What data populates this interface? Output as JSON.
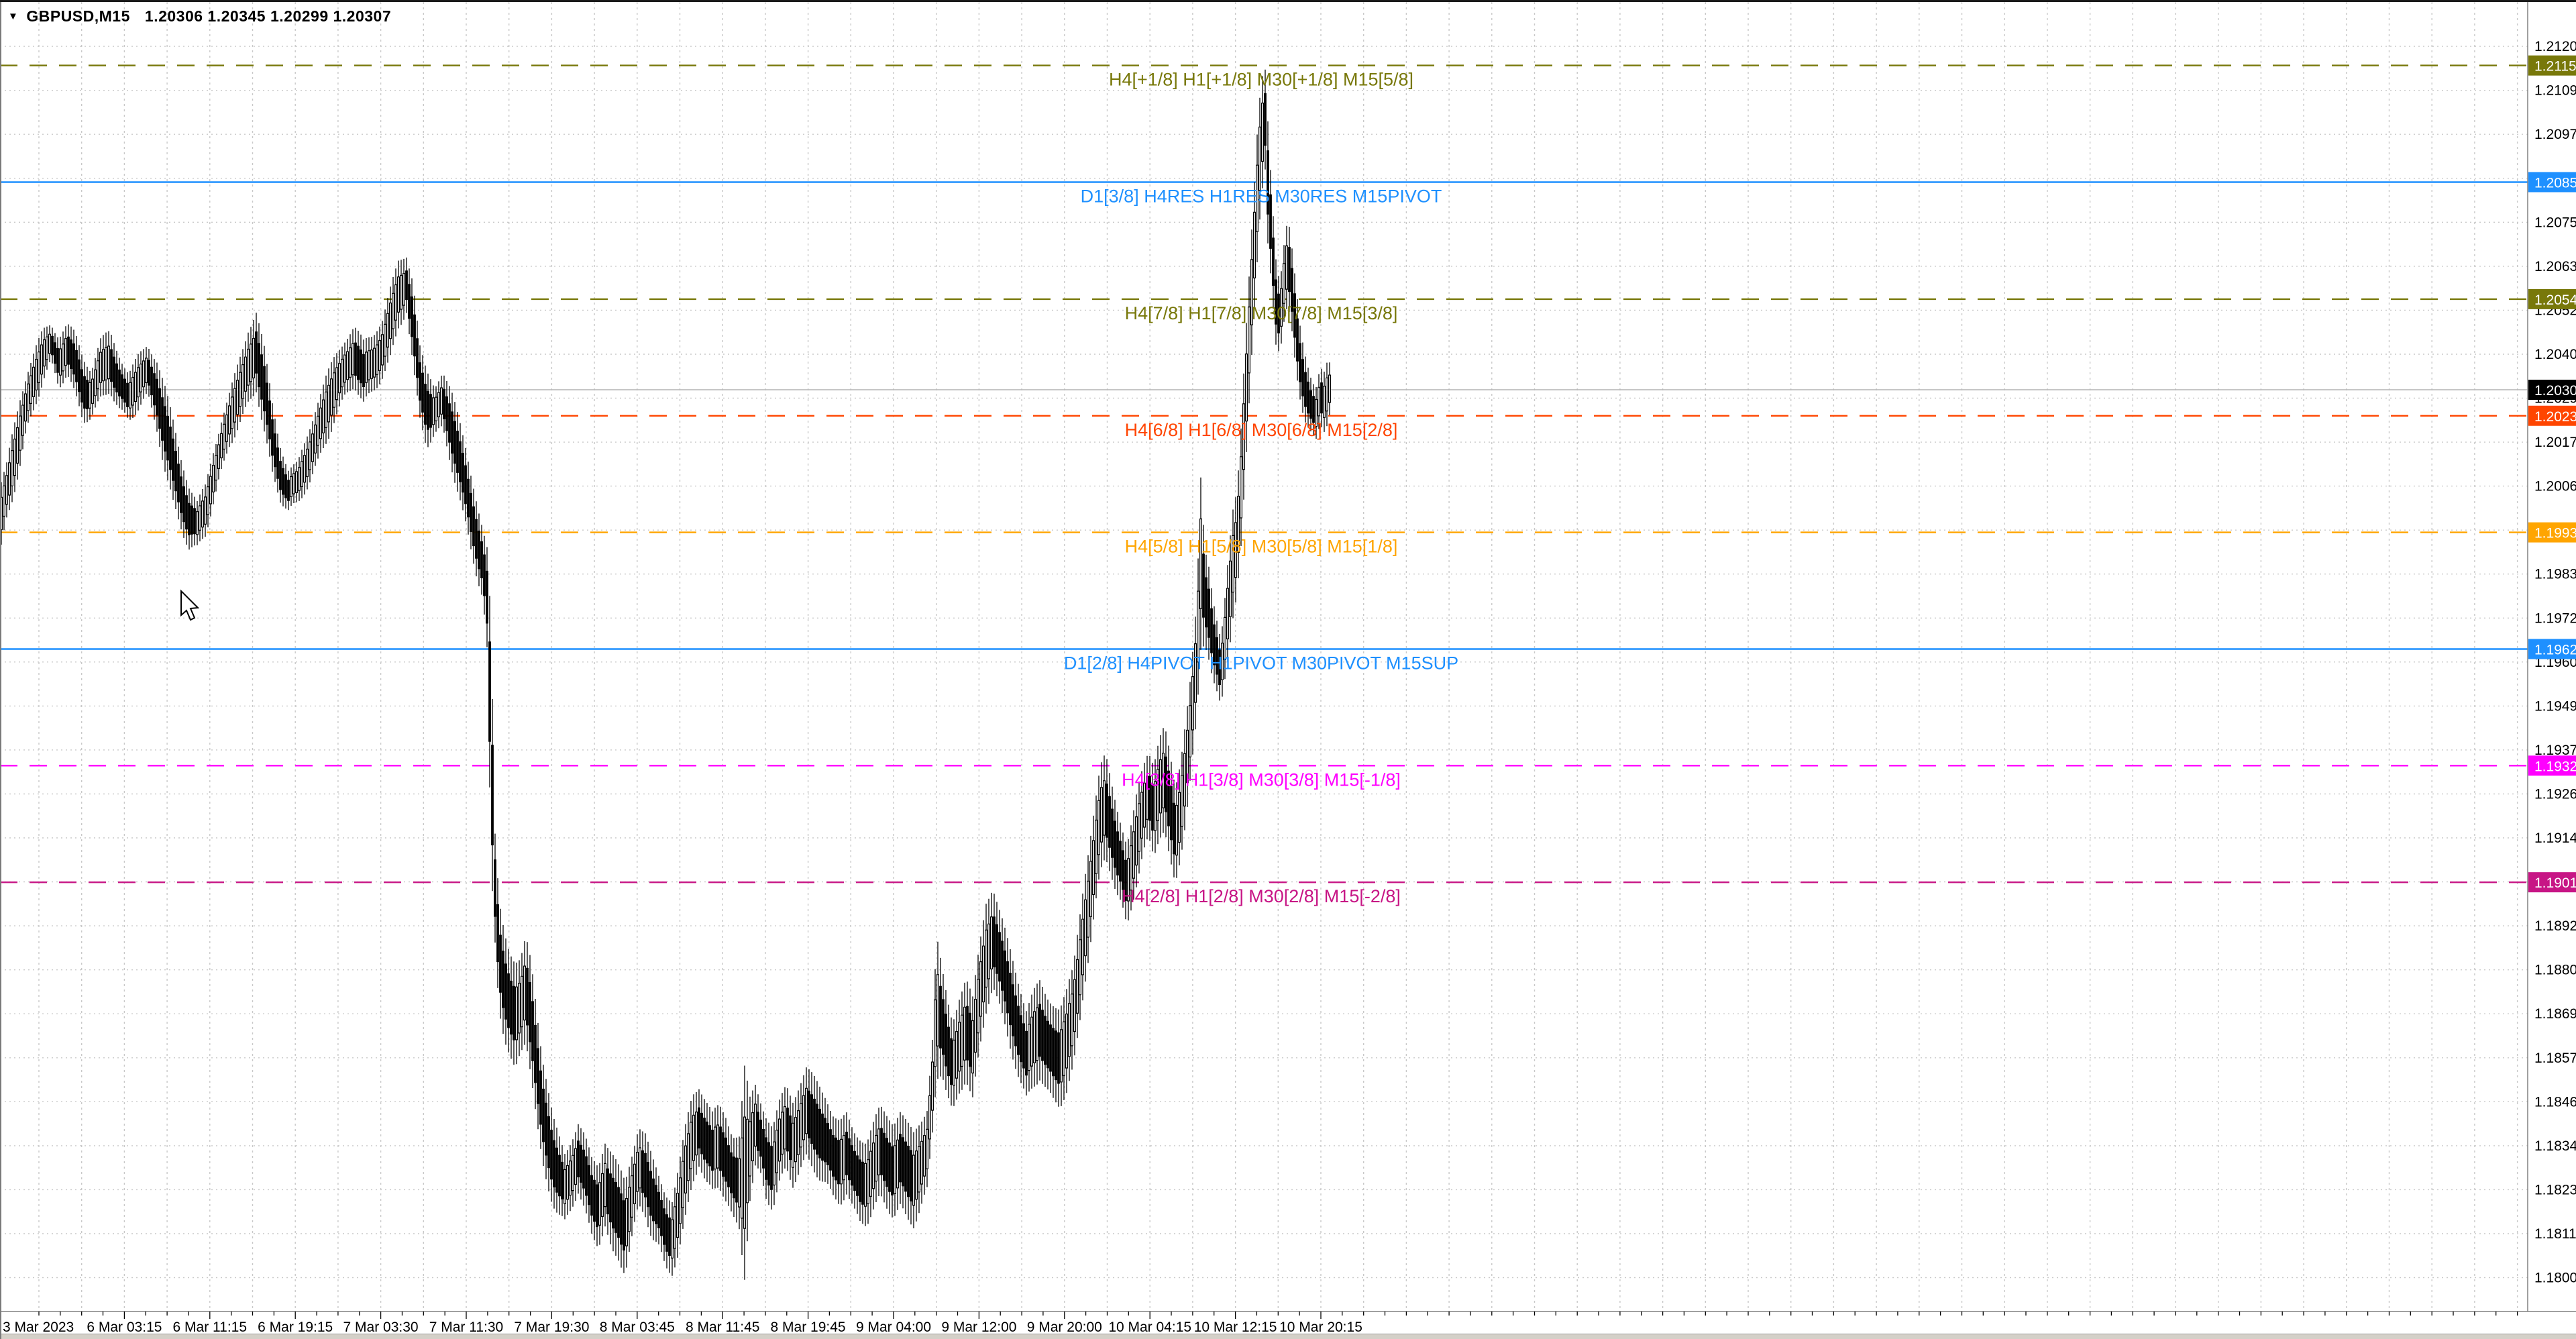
{
  "window": {
    "dropdown_marker": "▼",
    "title_symbol": "GBPUSD,M15",
    "title_ohlc": "1.20306 1.20345 1.20299 1.20307"
  },
  "chart_data": {
    "type": "candlestick",
    "symbol": "GBPUSD",
    "timeframe": "M15",
    "title": "GBPUSD,M15",
    "last_bar_ohlc": {
      "open": 1.20306,
      "high": 1.20345,
      "low": 1.20299,
      "close": 1.20307
    },
    "current_price": "1.20307",
    "grid": true,
    "legend_position": "none",
    "y_axis": {
      "side": "right",
      "top_price": 1.21205,
      "bottom_price": 1.18,
      "ticks": [
        "1.21205",
        "1.21090",
        "1.20975",
        "1.20860",
        "1.20750",
        "1.20635",
        "1.20520",
        "1.20405",
        "1.20290",
        "1.20175",
        "1.20060",
        "1.19945",
        "1.19835",
        "1.19720",
        "1.19605",
        "1.19490",
        "1.19375",
        "1.19260",
        "1.19145",
        "1.19030",
        "1.18920",
        "1.18805",
        "1.18690",
        "1.18575",
        "1.18460",
        "1.18345",
        "1.18230",
        "1.18115",
        "1.18000"
      ]
    },
    "x_axis": {
      "labels": [
        "3 Mar 2023",
        "6 Mar 03:15",
        "6 Mar 11:15",
        "6 Mar 19:15",
        "7 Mar 03:30",
        "7 Mar 11:30",
        "7 Mar 19:30",
        "8 Mar 03:45",
        "8 Mar 11:45",
        "8 Mar 19:45",
        "9 Mar 04:00",
        "9 Mar 12:00",
        "9 Mar 20:00",
        "10 Mar 04:15",
        "10 Mar 12:15",
        "10 Mar 20:15"
      ]
    },
    "murrey_lines": [
      {
        "price": 1.21155,
        "tag": "1.21155",
        "label": "H4[+1/8] H1[+1/8] M30[+1/8] M15[5/8]",
        "color": "#78780a",
        "style": "dashed"
      },
      {
        "price": 1.2085,
        "tag": "1.20850",
        "label": "D1[3/8] H4RES H1RES M30RES M15PIVOT",
        "color": "#1E90FF",
        "style": "solid"
      },
      {
        "price": 1.20544,
        "tag": "1.20544",
        "label": "H4[7/8] H1[7/8] M30[7/8] M15[3/8]",
        "color": "#78780a",
        "style": "dashed"
      },
      {
        "price": 1.20239,
        "tag": "1.20239",
        "label": "H4[6/8] H1[6/8] M30[6/8] M15[2/8]",
        "color": "#FF4500",
        "style": "dashed"
      },
      {
        "price": 1.19934,
        "tag": "1.19934",
        "label": "H4[5/8] H1[5/8] M30[5/8] M15[1/8]",
        "color": "#FFA500",
        "style": "dashed"
      },
      {
        "price": 1.19629,
        "tag": "1.19629",
        "label": "D1[2/8] H4PIVOT H1PIVOT M30PIVOT M15SUP",
        "color": "#1E90FF",
        "style": "solid"
      },
      {
        "price": 1.19324,
        "tag": "1.19324",
        "label": "H4[3/8] H1[3/8] M30[3/8] M15[-1/8]",
        "color": "#FF00FF",
        "style": "dashed"
      },
      {
        "price": 1.19019,
        "tag": "1.19019",
        "label": "H4[2/8] H1[2/8] M30[2/8] M15[-2/8]",
        "color": "#C71585",
        "style": "dashed"
      }
    ],
    "current_price_line": {
      "price": 1.20307,
      "tag": "1.20307",
      "line_color": "#b4b4b4",
      "tag_bg": "#000000"
    },
    "price_path": [
      [
        0,
        1.2004,
        1.1986
      ],
      [
        10,
        1.201,
        1.1996
      ],
      [
        20,
        1.202,
        1.2003
      ],
      [
        30,
        1.2029,
        1.2011
      ],
      [
        40,
        1.2036,
        1.2021
      ],
      [
        52,
        1.2042,
        1.2028
      ],
      [
        64,
        1.2047,
        1.2034
      ],
      [
        76,
        1.2049,
        1.2038
      ],
      [
        88,
        1.2045,
        1.2031
      ],
      [
        100,
        1.2047,
        1.2034
      ],
      [
        112,
        1.2044,
        1.2028
      ],
      [
        124,
        1.2038,
        1.2022
      ],
      [
        136,
        1.2035,
        1.2024
      ],
      [
        150,
        1.2043,
        1.2029
      ],
      [
        164,
        1.2046,
        1.2032
      ],
      [
        178,
        1.2041,
        1.2026
      ],
      [
        192,
        1.2036,
        1.2022
      ],
      [
        206,
        1.204,
        1.2025
      ],
      [
        220,
        1.2043,
        1.2028
      ],
      [
        234,
        1.2038,
        1.202
      ],
      [
        246,
        1.203,
        1.201
      ],
      [
        258,
        1.2021,
        1.2002
      ],
      [
        270,
        1.2012,
        1.1996
      ],
      [
        282,
        1.2005,
        1.199
      ],
      [
        294,
        1.2001,
        1.1989
      ],
      [
        306,
        1.2006,
        1.1992
      ],
      [
        318,
        1.2016,
        1.2
      ],
      [
        330,
        1.2024,
        1.2008
      ],
      [
        342,
        1.203,
        1.2016
      ],
      [
        356,
        1.2038,
        1.2022
      ],
      [
        370,
        1.2046,
        1.2028
      ],
      [
        382,
        1.205,
        1.2032
      ],
      [
        394,
        1.204,
        1.202
      ],
      [
        406,
        1.2026,
        1.2008
      ],
      [
        418,
        1.2016,
        1.2001
      ],
      [
        430,
        1.201,
        1.1998
      ],
      [
        444,
        1.2012,
        1.2
      ],
      [
        458,
        1.202,
        1.2006
      ],
      [
        472,
        1.2028,
        1.2012
      ],
      [
        486,
        1.2034,
        1.2018
      ],
      [
        500,
        1.2039,
        1.2024
      ],
      [
        514,
        1.2043,
        1.2028
      ],
      [
        528,
        1.2046,
        1.2031
      ],
      [
        542,
        1.2042,
        1.2026
      ],
      [
        556,
        1.2045,
        1.203
      ],
      [
        570,
        1.205,
        1.2035
      ],
      [
        582,
        1.2058,
        1.204
      ],
      [
        594,
        1.2065,
        1.2048
      ],
      [
        606,
        1.2067,
        1.2052
      ],
      [
        616,
        1.206,
        1.2036
      ],
      [
        626,
        1.2042,
        1.2022
      ],
      [
        636,
        1.2034,
        1.2015
      ],
      [
        648,
        1.203,
        1.2018
      ],
      [
        660,
        1.2035,
        1.202
      ],
      [
        672,
        1.203,
        1.2012
      ],
      [
        684,
        1.2022,
        1.2004
      ],
      [
        696,
        1.2014,
        1.1995
      ],
      [
        708,
        1.2005,
        1.1985
      ],
      [
        720,
        1.1995,
        1.1976
      ],
      [
        726,
        1.199,
        1.1962
      ],
      [
        730,
        1.1977,
        1.1925
      ],
      [
        734,
        1.195,
        1.1898
      ],
      [
        738,
        1.1915,
        1.1885
      ],
      [
        744,
        1.1898,
        1.1868
      ],
      [
        752,
        1.189,
        1.186
      ],
      [
        760,
        1.1884,
        1.1855
      ],
      [
        768,
        1.188,
        1.1852
      ],
      [
        776,
        1.188,
        1.1858
      ],
      [
        784,
        1.1886,
        1.1862
      ],
      [
        792,
        1.188,
        1.1852
      ],
      [
        800,
        1.1868,
        1.184
      ],
      [
        808,
        1.1856,
        1.183
      ],
      [
        816,
        1.1848,
        1.1824
      ],
      [
        824,
        1.184,
        1.1818
      ],
      [
        832,
        1.1836,
        1.1814
      ],
      [
        842,
        1.1832,
        1.1812
      ],
      [
        852,
        1.1836,
        1.1816
      ],
      [
        862,
        1.184,
        1.182
      ],
      [
        872,
        1.1836,
        1.1815
      ],
      [
        882,
        1.183,
        1.181
      ],
      [
        892,
        1.1828,
        1.1808
      ],
      [
        902,
        1.1834,
        1.1813
      ],
      [
        912,
        1.183,
        1.1806
      ],
      [
        922,
        1.1826,
        1.1804
      ],
      [
        932,
        1.1822,
        1.18
      ],
      [
        942,
        1.183,
        1.1808
      ],
      [
        952,
        1.1838,
        1.1816
      ],
      [
        962,
        1.1836,
        1.1814
      ],
      [
        972,
        1.183,
        1.1808
      ],
      [
        982,
        1.1826,
        1.1806
      ],
      [
        992,
        1.1822,
        1.1802
      ],
      [
        1002,
        1.182,
        1.1801
      ],
      [
        1012,
        1.1828,
        1.1806
      ],
      [
        1022,
        1.1838,
        1.1815
      ],
      [
        1032,
        1.1846,
        1.1824
      ],
      [
        1042,
        1.1848,
        1.1828
      ],
      [
        1052,
        1.1844,
        1.1822
      ],
      [
        1062,
        1.184,
        1.182
      ],
      [
        1072,
        1.1842,
        1.1822
      ],
      [
        1082,
        1.184,
        1.1818
      ],
      [
        1092,
        1.1836,
        1.1814
      ],
      [
        1102,
        1.1836,
        1.1812
      ],
      [
        1110,
        1.1854,
        1.18
      ],
      [
        1118,
        1.1846,
        1.182
      ],
      [
        1126,
        1.185,
        1.1828
      ],
      [
        1134,
        1.1846,
        1.1826
      ],
      [
        1142,
        1.1842,
        1.182
      ],
      [
        1152,
        1.1838,
        1.1816
      ],
      [
        1162,
        1.1844,
        1.1822
      ],
      [
        1172,
        1.1848,
        1.1826
      ],
      [
        1182,
        1.1844,
        1.1822
      ],
      [
        1192,
        1.1848,
        1.1826
      ],
      [
        1202,
        1.1852,
        1.183
      ],
      [
        1212,
        1.185,
        1.1828
      ],
      [
        1222,
        1.1848,
        1.1826
      ],
      [
        1232,
        1.1846,
        1.1824
      ],
      [
        1242,
        1.1842,
        1.182
      ],
      [
        1252,
        1.184,
        1.1818
      ],
      [
        1262,
        1.1842,
        1.182
      ],
      [
        1272,
        1.1838,
        1.1815
      ],
      [
        1282,
        1.1836,
        1.1812
      ],
      [
        1292,
        1.1834,
        1.1812
      ],
      [
        1302,
        1.1838,
        1.1816
      ],
      [
        1312,
        1.1842,
        1.182
      ],
      [
        1322,
        1.184,
        1.1818
      ],
      [
        1332,
        1.1838,
        1.1816
      ],
      [
        1342,
        1.1841,
        1.1818
      ],
      [
        1352,
        1.1838,
        1.1814
      ],
      [
        1362,
        1.1836,
        1.1812
      ],
      [
        1372,
        1.184,
        1.1816
      ],
      [
        1382,
        1.1844,
        1.182
      ],
      [
        1390,
        1.1862,
        1.1835
      ],
      [
        1396,
        1.1889,
        1.185
      ],
      [
        1404,
        1.188,
        1.1852
      ],
      [
        1412,
        1.1872,
        1.1846
      ],
      [
        1420,
        1.1866,
        1.1842
      ],
      [
        1430,
        1.1872,
        1.1848
      ],
      [
        1440,
        1.1876,
        1.1852
      ],
      [
        1450,
        1.187,
        1.1846
      ],
      [
        1460,
        1.1884,
        1.1858
      ],
      [
        1470,
        1.1896,
        1.1868
      ],
      [
        1480,
        1.19,
        1.1874
      ],
      [
        1490,
        1.1894,
        1.1868
      ],
      [
        1500,
        1.1888,
        1.1862
      ],
      [
        1510,
        1.1882,
        1.1856
      ],
      [
        1520,
        1.1876,
        1.185
      ],
      [
        1530,
        1.187,
        1.1846
      ],
      [
        1540,
        1.1874,
        1.185
      ],
      [
        1550,
        1.1876,
        1.1852
      ],
      [
        1560,
        1.1872,
        1.1848
      ],
      [
        1570,
        1.187,
        1.1845
      ],
      [
        1580,
        1.1868,
        1.1843
      ],
      [
        1590,
        1.1872,
        1.1846
      ],
      [
        1600,
        1.1878,
        1.1852
      ],
      [
        1608,
        1.189,
        1.1862
      ],
      [
        1616,
        1.1902,
        1.1874
      ],
      [
        1624,
        1.1912,
        1.1884
      ],
      [
        1632,
        1.1922,
        1.1895
      ],
      [
        1640,
        1.1932,
        1.1905
      ],
      [
        1648,
        1.1936,
        1.191
      ],
      [
        1656,
        1.193,
        1.1906
      ],
      [
        1664,
        1.1924,
        1.19
      ],
      [
        1672,
        1.1918,
        1.1896
      ],
      [
        1680,
        1.1912,
        1.189
      ],
      [
        1688,
        1.1918,
        1.1896
      ],
      [
        1696,
        1.1926,
        1.1902
      ],
      [
        1704,
        1.1932,
        1.1908
      ],
      [
        1712,
        1.1936,
        1.1912
      ],
      [
        1720,
        1.1932,
        1.1908
      ],
      [
        1728,
        1.1938,
        1.1914
      ],
      [
        1736,
        1.1941,
        1.1916
      ],
      [
        1744,
        1.1934,
        1.1908
      ],
      [
        1752,
        1.1926,
        1.1902
      ],
      [
        1760,
        1.1934,
        1.191
      ],
      [
        1768,
        1.1946,
        1.192
      ],
      [
        1776,
        1.1958,
        1.1932
      ],
      [
        1784,
        1.1976,
        1.1944
      ],
      [
        1790,
        1.2008,
        1.1962
      ],
      [
        1796,
        1.199,
        1.1964
      ],
      [
        1802,
        1.1986,
        1.196
      ],
      [
        1808,
        1.1978,
        1.1954
      ],
      [
        1814,
        1.1972,
        1.195
      ],
      [
        1820,
        1.1966,
        1.1946
      ],
      [
        1826,
        1.1976,
        1.1954
      ],
      [
        1832,
        1.1988,
        1.1962
      ],
      [
        1838,
        1.1998,
        1.1972
      ],
      [
        1844,
        1.2003,
        1.1978
      ],
      [
        1850,
        1.202,
        1.199
      ],
      [
        1856,
        1.2042,
        1.2008
      ],
      [
        1862,
        1.206,
        1.2028
      ],
      [
        1868,
        1.2078,
        1.2048
      ],
      [
        1874,
        1.2096,
        1.2066
      ],
      [
        1880,
        1.211,
        1.2082
      ],
      [
        1886,
        1.2113,
        1.2088
      ],
      [
        1890,
        1.21,
        1.2068
      ],
      [
        1896,
        1.2082,
        1.2056
      ],
      [
        1902,
        1.2066,
        1.2042
      ],
      [
        1908,
        1.206,
        1.204
      ],
      [
        1914,
        1.207,
        1.2048
      ],
      [
        1920,
        1.2077,
        1.2052
      ],
      [
        1926,
        1.2068,
        1.2044
      ],
      [
        1932,
        1.2058,
        1.2034
      ],
      [
        1938,
        1.2048,
        1.2028
      ],
      [
        1944,
        1.2042,
        1.2024
      ],
      [
        1950,
        1.2038,
        1.2022
      ],
      [
        1956,
        1.2034,
        1.202
      ],
      [
        1962,
        1.2032,
        1.2018
      ],
      [
        1968,
        1.2036,
        1.2022
      ],
      [
        1974,
        1.2034,
        1.2021
      ],
      [
        1980,
        1.2037,
        1.2024
      ],
      [
        1984,
        1.2035,
        1.2028
      ]
    ]
  },
  "colors": {
    "background": "#ffffff",
    "grid": "#c9c9c9",
    "bars": "#000000",
    "axis_text": "#000000",
    "separator": "#808080"
  }
}
